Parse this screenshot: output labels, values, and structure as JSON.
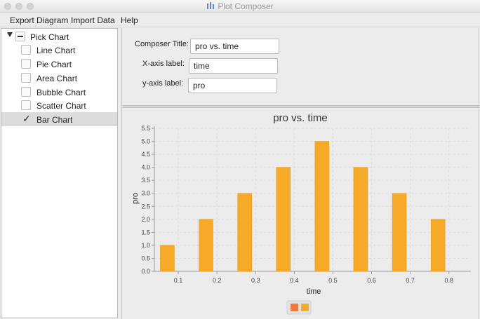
{
  "window": {
    "title": "Plot Composer",
    "title_icon": "plot-composer-app-icon"
  },
  "menu": {
    "items": [
      "Export Diagram",
      "Import Data",
      "Help"
    ]
  },
  "sidebar": {
    "root": {
      "label": "Pick Chart",
      "expanded": true,
      "state": "indeterminate"
    },
    "items": [
      {
        "label": "Line Chart",
        "checked": false,
        "selected": false
      },
      {
        "label": "Pie Chart",
        "checked": false,
        "selected": false
      },
      {
        "label": "Area Chart",
        "checked": false,
        "selected": false
      },
      {
        "label": "Bubble Chart",
        "checked": false,
        "selected": false
      },
      {
        "label": "Scatter Chart",
        "checked": false,
        "selected": false
      },
      {
        "label": "Bar Chart",
        "checked": true,
        "selected": true
      }
    ]
  },
  "form": {
    "composer_title_label": "Composer Title:",
    "composer_title_value": "pro vs. time",
    "xaxis_label_label": "X-axis label:",
    "xaxis_label_value": "time",
    "yaxis_label_label": "y-axis label:",
    "yaxis_label_value": "pro"
  },
  "colors": {
    "bar": "#f7a928",
    "legend_swatch_1": "#f07a3c",
    "legend_swatch_2": "#f7a928"
  },
  "chart_data": {
    "type": "bar",
    "title": "pro vs. time",
    "xlabel": "time",
    "ylabel": "pro",
    "categories": [
      "0.1",
      "0.2",
      "0.3",
      "0.4",
      "0.5",
      "0.6",
      "0.7",
      "0.8"
    ],
    "values": [
      1.0,
      2.0,
      3.0,
      4.0,
      5.0,
      4.0,
      3.0,
      2.0
    ],
    "ylim": [
      0,
      5.5
    ],
    "yticks": [
      "0.0",
      "0.5",
      "1.0",
      "1.5",
      "2.0",
      "2.5",
      "3.0",
      "3.5",
      "4.0",
      "4.5",
      "5.0",
      "5.5"
    ],
    "grid": true,
    "legend_placement": "bottom-center"
  }
}
